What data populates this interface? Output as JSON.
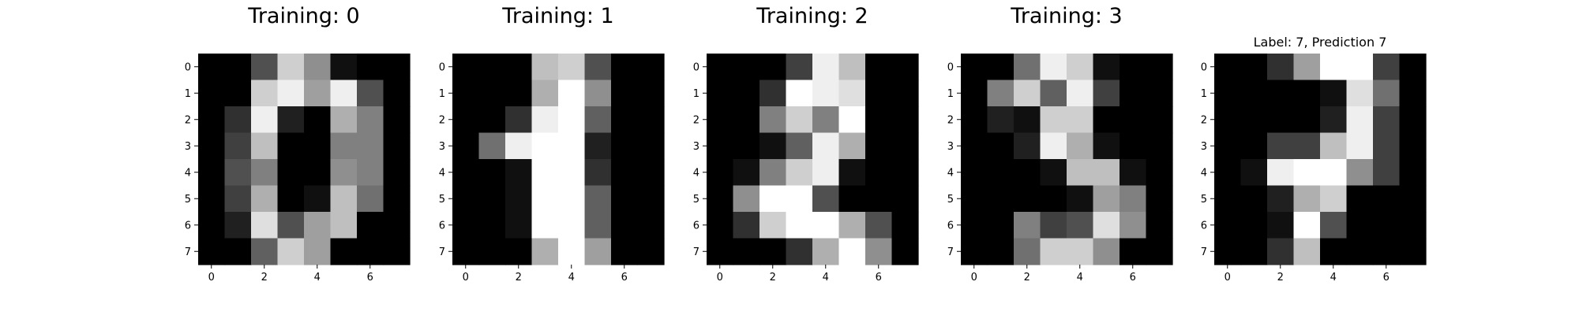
{
  "chart_data": [
    {
      "type": "heatmap",
      "title": "Training: 0",
      "colormap": "gray",
      "value_range": [
        0,
        16
      ],
      "xticks": [
        0,
        2,
        4,
        6
      ],
      "yticks": [
        0,
        1,
        2,
        3,
        4,
        5,
        6,
        7
      ],
      "values": [
        [
          0,
          0,
          5,
          13,
          9,
          1,
          0,
          0
        ],
        [
          0,
          0,
          13,
          15,
          10,
          15,
          5,
          0
        ],
        [
          0,
          3,
          15,
          2,
          0,
          11,
          8,
          0
        ],
        [
          0,
          4,
          12,
          0,
          0,
          8,
          8,
          0
        ],
        [
          0,
          5,
          8,
          0,
          0,
          9,
          8,
          0
        ],
        [
          0,
          4,
          11,
          0,
          1,
          12,
          7,
          0
        ],
        [
          0,
          2,
          14,
          5,
          10,
          12,
          0,
          0
        ],
        [
          0,
          0,
          6,
          13,
          10,
          0,
          0,
          0
        ]
      ]
    },
    {
      "type": "heatmap",
      "title": "Training: 1",
      "colormap": "gray",
      "value_range": [
        0,
        16
      ],
      "xticks": [
        0,
        2,
        4,
        6
      ],
      "yticks": [
        0,
        1,
        2,
        3,
        4,
        5,
        6,
        7
      ],
      "values": [
        [
          0,
          0,
          0,
          12,
          13,
          5,
          0,
          0
        ],
        [
          0,
          0,
          0,
          11,
          16,
          9,
          0,
          0
        ],
        [
          0,
          0,
          3,
          15,
          16,
          6,
          0,
          0
        ],
        [
          0,
          7,
          15,
          16,
          16,
          2,
          0,
          0
        ],
        [
          0,
          0,
          1,
          16,
          16,
          3,
          0,
          0
        ],
        [
          0,
          0,
          1,
          16,
          16,
          6,
          0,
          0
        ],
        [
          0,
          0,
          1,
          16,
          16,
          6,
          0,
          0
        ],
        [
          0,
          0,
          0,
          11,
          16,
          10,
          0,
          0
        ]
      ]
    },
    {
      "type": "heatmap",
      "title": "Training: 2",
      "colormap": "gray",
      "value_range": [
        0,
        16
      ],
      "xticks": [
        0,
        2,
        4,
        6
      ],
      "yticks": [
        0,
        1,
        2,
        3,
        4,
        5,
        6,
        7
      ],
      "values": [
        [
          0,
          0,
          0,
          4,
          15,
          12,
          0,
          0
        ],
        [
          0,
          0,
          3,
          16,
          15,
          14,
          0,
          0
        ],
        [
          0,
          0,
          8,
          13,
          8,
          16,
          0,
          0
        ],
        [
          0,
          0,
          1,
          6,
          15,
          11,
          0,
          0
        ],
        [
          0,
          1,
          8,
          13,
          15,
          1,
          0,
          0
        ],
        [
          0,
          9,
          16,
          16,
          5,
          0,
          0,
          0
        ],
        [
          0,
          3,
          13,
          16,
          16,
          11,
          5,
          0
        ],
        [
          0,
          0,
          0,
          3,
          11,
          16,
          9,
          0
        ]
      ]
    },
    {
      "type": "heatmap",
      "title": "Training: 3",
      "colormap": "gray",
      "value_range": [
        0,
        16
      ],
      "xticks": [
        0,
        2,
        4,
        6
      ],
      "yticks": [
        0,
        1,
        2,
        3,
        4,
        5,
        6,
        7
      ],
      "values": [
        [
          0,
          0,
          7,
          15,
          13,
          1,
          0,
          0
        ],
        [
          0,
          8,
          13,
          6,
          15,
          4,
          0,
          0
        ],
        [
          0,
          2,
          1,
          13,
          13,
          0,
          0,
          0
        ],
        [
          0,
          0,
          2,
          15,
          11,
          1,
          0,
          0
        ],
        [
          0,
          0,
          0,
          1,
          12,
          12,
          1,
          0
        ],
        [
          0,
          0,
          0,
          0,
          1,
          10,
          8,
          0
        ],
        [
          0,
          0,
          8,
          4,
          5,
          14,
          9,
          0
        ],
        [
          0,
          0,
          7,
          13,
          13,
          9,
          0,
          0
        ]
      ]
    },
    {
      "type": "heatmap",
      "title": "Label: 7, Prediction 7",
      "colormap": "gray",
      "value_range": [
        0,
        16
      ],
      "xticks": [
        0,
        2,
        4,
        6
      ],
      "yticks": [
        0,
        1,
        2,
        3,
        4,
        5,
        6,
        7
      ],
      "values": [
        [
          0,
          0,
          3,
          10,
          16,
          16,
          4,
          0
        ],
        [
          0,
          0,
          0,
          0,
          1,
          14,
          7,
          0
        ],
        [
          0,
          0,
          0,
          0,
          2,
          15,
          4,
          0
        ],
        [
          0,
          0,
          4,
          4,
          12,
          15,
          4,
          0
        ],
        [
          0,
          1,
          15,
          16,
          16,
          9,
          4,
          0
        ],
        [
          0,
          0,
          2,
          11,
          13,
          0,
          0,
          0
        ],
        [
          0,
          0,
          1,
          16,
          5,
          0,
          0,
          0
        ],
        [
          0,
          0,
          3,
          12,
          0,
          0,
          0,
          0
        ]
      ]
    }
  ]
}
